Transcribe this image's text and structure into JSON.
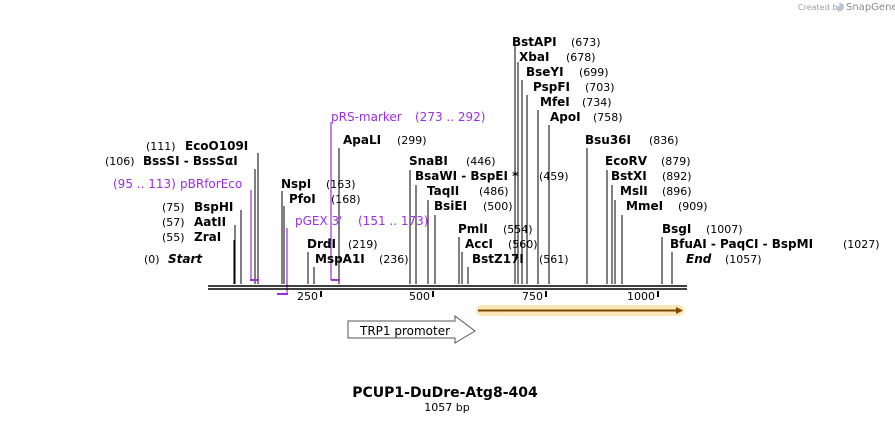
{
  "app": {
    "credit": "Created by",
    "brand": "SnapGene"
  },
  "map": {
    "title": "PCUP1-DuDre-Atg8-404",
    "length_label": "1057 bp",
    "start_label": "Start",
    "start_pos": "(0)",
    "end_label": "End",
    "end_pos": "(1057)",
    "ticks": [
      "250",
      "500",
      "750",
      "1000"
    ]
  },
  "sites": [
    {
      "name": "BstAPI",
      "pos": "(673)"
    },
    {
      "name": "XbaI",
      "pos": "(678)"
    },
    {
      "name": "BseYI",
      "pos": "(699)"
    },
    {
      "name": "PspFI",
      "pos": "(703)"
    },
    {
      "name": "MfeI",
      "pos": "(734)"
    },
    {
      "name": "ApoI",
      "pos": "(758)"
    },
    {
      "name": "ApaLI",
      "pos": "(299)"
    },
    {
      "name": "Bsu36I",
      "pos": "(836)"
    },
    {
      "name": "EcoO109I",
      "pos": "(111)"
    },
    {
      "name": "BssSI - BssSαI",
      "pos": "(106)"
    },
    {
      "name": "SnaBI",
      "pos": "(446)"
    },
    {
      "name": "EcoRV",
      "pos": "(879)"
    },
    {
      "name": "BsaWI - BspEI *",
      "pos": "(459)"
    },
    {
      "name": "BstXI",
      "pos": "(892)"
    },
    {
      "name": "NspI",
      "pos": "(163)"
    },
    {
      "name": "TaqII",
      "pos": "(486)"
    },
    {
      "name": "MslI",
      "pos": "(896)"
    },
    {
      "name": "PfoI",
      "pos": "(168)"
    },
    {
      "name": "BsiEI",
      "pos": "(500)"
    },
    {
      "name": "MmeI",
      "pos": "(909)"
    },
    {
      "name": "BspHI",
      "pos": "(75)"
    },
    {
      "name": "AatII",
      "pos": "(57)"
    },
    {
      "name": "PmlI",
      "pos": "(554)"
    },
    {
      "name": "BsgI",
      "pos": "(1007)"
    },
    {
      "name": "ZraI",
      "pos": "(55)"
    },
    {
      "name": "AccI",
      "pos": "(560)"
    },
    {
      "name": "BfuAI - PaqCI - BspMI",
      "pos": "(1027)"
    },
    {
      "name": "DrdI",
      "pos": "(219)"
    },
    {
      "name": "MspA1I",
      "pos": "(236)"
    },
    {
      "name": "BstZ17I",
      "pos": "(561)"
    }
  ],
  "primers": [
    {
      "name": "pRS-marker",
      "range": "(273 .. 292)"
    },
    {
      "name": "pBRforEco",
      "range": "(95 .. 113)"
    },
    {
      "name": "pGEX 3'",
      "range": "(151 .. 173)"
    }
  ],
  "features": [
    {
      "name": "TRP1 promoter"
    },
    {
      "name": "",
      "color": "#f5a623"
    }
  ],
  "colors": {
    "primer": "#9b30d9",
    "feature_orange": "#f5a623",
    "backbone": "#000000"
  }
}
